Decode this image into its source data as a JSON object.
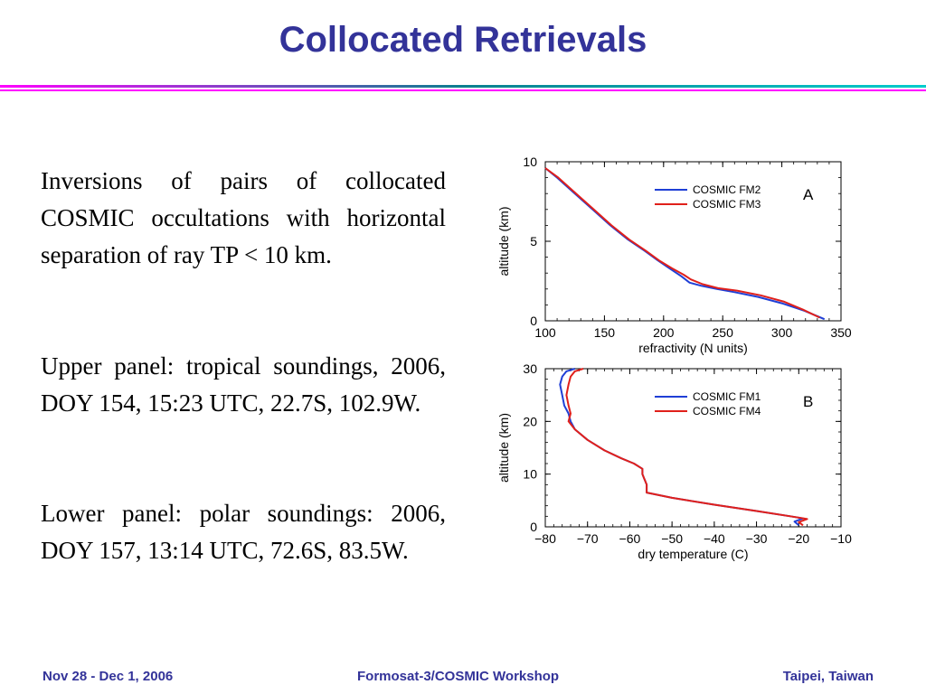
{
  "slide": {
    "title": "Collocated Retrievals",
    "paragraphs": [
      "Inversions of pairs of collocated COSMIC occultations with horizontal separation of ray TP < 10 km.",
      "Upper panel: tropical soundings, 2006, DOY 154, 15:23 UTC, 22.7S, 102.9W.",
      "Lower panel: polar soundings: 2006, DOY 157, 13:14 UTC, 72.6S, 83.5W."
    ],
    "footer": {
      "left": "Nov 28 - Dec 1, 2006",
      "center": "Formosat-3/COSMIC Workshop",
      "right": "Taipei, Taiwan"
    },
    "colors": {
      "title": "#333399",
      "footer": "#333399",
      "rule_top": "#0b7f8f",
      "rule_bottom": "#ff00ff"
    }
  },
  "chart_data": [
    {
      "type": "line",
      "panel_label": "A",
      "xlabel": "refractivity (N units)",
      "ylabel": "altitude (km)",
      "xlim": [
        100,
        350
      ],
      "ylim": [
        0,
        10
      ],
      "xticks": [
        100,
        150,
        200,
        250,
        300,
        350
      ],
      "yticks": [
        0,
        5,
        10
      ],
      "legend_position": "top-right",
      "series": [
        {
          "name": "COSMIC FM2",
          "color": "#1f3fd6",
          "x": [
            336,
            320,
            300,
            280,
            260,
            245,
            232,
            222,
            215,
            205,
            195,
            184,
            170,
            155,
            140,
            125,
            110,
            100
          ],
          "y": [
            0.1,
            0.6,
            1.1,
            1.5,
            1.8,
            2.0,
            2.2,
            2.4,
            2.8,
            3.3,
            3.8,
            4.4,
            5.1,
            6.0,
            7.0,
            8.0,
            9.0,
            9.6
          ]
        },
        {
          "name": "COSMIC FM3",
          "color": "#e0201b",
          "x": [
            332,
            318,
            302,
            282,
            262,
            246,
            233,
            223,
            217,
            207,
            196,
            185,
            171,
            156,
            141,
            126,
            111,
            100
          ],
          "y": [
            0.2,
            0.7,
            1.2,
            1.6,
            1.9,
            2.05,
            2.3,
            2.6,
            2.9,
            3.3,
            3.8,
            4.4,
            5.1,
            6.0,
            7.0,
            8.0,
            9.0,
            9.6
          ]
        }
      ]
    },
    {
      "type": "line",
      "panel_label": "B",
      "xlabel": "dry temperature (C)",
      "ylabel": "altitude (km)",
      "xlim": [
        -80,
        -10
      ],
      "ylim": [
        0,
        30
      ],
      "xticks": [
        -80,
        -70,
        -60,
        -50,
        -40,
        -30,
        -20,
        -10
      ],
      "yticks": [
        0,
        10,
        20,
        30
      ],
      "legend_position": "top-right",
      "series": [
        {
          "name": "COSMIC FM1",
          "color": "#1f3fd6",
          "x": [
            -20,
            -21,
            -19,
            -22,
            -30,
            -40,
            -50,
            -56,
            -56,
            -57,
            -57,
            -59,
            -62,
            -66,
            -70,
            -73,
            -74,
            -74.5,
            -75.5,
            -76,
            -76.5,
            -76,
            -75,
            -73
          ],
          "y": [
            0.3,
            1.0,
            1.6,
            2.0,
            3.0,
            4.2,
            5.5,
            6.5,
            8.0,
            10.0,
            11.0,
            12.0,
            13.0,
            14.5,
            16.5,
            18.5,
            20.0,
            21.5,
            23.0,
            25.0,
            27.0,
            28.5,
            29.5,
            30.0
          ]
        },
        {
          "name": "COSMIC FM4",
          "color": "#e0201b",
          "x": [
            -19,
            -20,
            -18,
            -22,
            -30,
            -40,
            -50,
            -56,
            -56,
            -57,
            -57,
            -59,
            -62,
            -66,
            -70,
            -73,
            -74.5,
            -74,
            -74.5,
            -75,
            -74.5,
            -74,
            -73,
            -71
          ],
          "y": [
            0.3,
            0.9,
            1.5,
            2.0,
            3.0,
            4.2,
            5.5,
            6.5,
            8.0,
            10.0,
            11.0,
            12.0,
            13.0,
            14.5,
            16.5,
            18.5,
            20.0,
            21.5,
            23.0,
            25.0,
            27.0,
            28.5,
            29.5,
            30.0
          ]
        }
      ]
    }
  ]
}
